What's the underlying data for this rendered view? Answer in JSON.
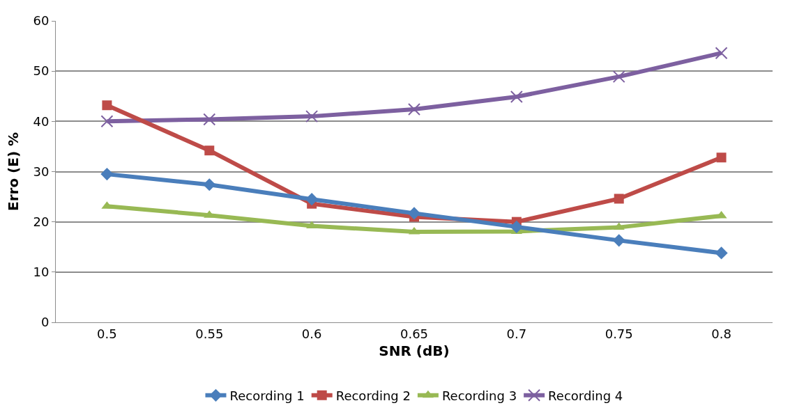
{
  "chart_data": {
    "type": "line",
    "xlabel": "SNR (dB)",
    "ylabel": "Erro (E) %",
    "categories": [
      "0.5",
      "0.55",
      "0.6",
      "0.65",
      "0.7",
      "0.75",
      "0.8"
    ],
    "series": [
      {
        "name": "Recording 1",
        "color": "#4a7ebb",
        "marker": "diamond",
        "values": [
          29.5,
          27.4,
          24.5,
          21.7,
          19,
          16.3,
          13.8
        ]
      },
      {
        "name": "Recording 2",
        "color": "#be4b48",
        "marker": "square",
        "values": [
          43.2,
          34.2,
          23.6,
          21,
          20,
          24.6,
          32.8
        ]
      },
      {
        "name": "Recording 3",
        "color": "#98b954",
        "marker": "triangle",
        "values": [
          23.1,
          21.3,
          19.2,
          18,
          18.1,
          18.9,
          21.2
        ]
      },
      {
        "name": "Recording 4",
        "color": "#7d60a0",
        "marker": "cross",
        "values": [
          40,
          40.4,
          41,
          42.4,
          44.9,
          48.9,
          53.6
        ]
      }
    ],
    "ylim": [
      0,
      60
    ],
    "yticks": [
      0,
      10,
      20,
      30,
      40,
      50,
      60
    ],
    "grid": "y",
    "legend": "bottom",
    "line_style": "solid"
  }
}
